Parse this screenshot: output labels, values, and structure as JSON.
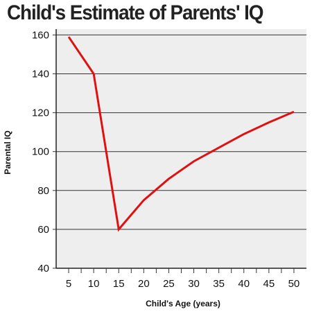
{
  "chart_data": {
    "type": "line",
    "title": "Child's Estimate of Parents' IQ",
    "xlabel": "Child's Age (years)",
    "ylabel": "Parental IQ",
    "x": [
      5,
      10,
      15,
      20,
      25,
      30,
      35,
      40,
      45,
      50
    ],
    "series": [
      {
        "values": [
          159,
          140,
          60,
          75,
          86,
          95,
          102,
          109,
          115,
          120.5
        ]
      }
    ],
    "xticks": [
      5,
      10,
      15,
      20,
      25,
      30,
      35,
      40,
      45,
      50
    ],
    "yticks": [
      40,
      60,
      80,
      100,
      120,
      140,
      160
    ],
    "xlim": [
      2.5,
      52.5
    ],
    "ylim": [
      40,
      163
    ],
    "grid": true,
    "line_color": "#e01010",
    "plot_background": "#eeeeee"
  }
}
